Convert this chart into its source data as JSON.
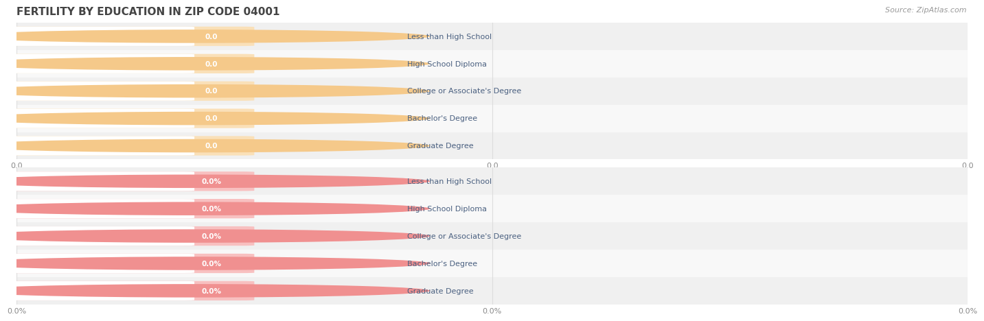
{
  "title": "FERTILITY BY EDUCATION IN ZIP CODE 04001",
  "source": "Source: ZipAtlas.com",
  "categories": [
    "Less than High School",
    "High School Diploma",
    "College or Associate's Degree",
    "Bachelor's Degree",
    "Graduate Degree"
  ],
  "top_values": [
    0.0,
    0.0,
    0.0,
    0.0,
    0.0
  ],
  "bottom_values": [
    0.0,
    0.0,
    0.0,
    0.0,
    0.0
  ],
  "top_bar_color": "#F5C98A",
  "top_bar_light": "#FAE0B8",
  "bottom_bar_color": "#F09090",
  "bottom_bar_light": "#F8C0C0",
  "label_text_color": "#4a6080",
  "value_text_color": "#ffffff",
  "top_tick_labels": [
    "0.0",
    "0.0",
    "0.0"
  ],
  "bottom_tick_labels": [
    "0.0%",
    "0.0%",
    "0.0%"
  ],
  "background_color": "#ffffff",
  "row_alt_color": "#f0f0f0",
  "row_main_color": "#f8f8f8",
  "title_color": "#444444",
  "source_color": "#999999",
  "tick_color": "#888888",
  "grid_color": "#dddddd",
  "title_fontsize": 11,
  "source_fontsize": 8,
  "label_fontsize": 8,
  "value_fontsize": 7.5,
  "tick_fontsize": 8
}
